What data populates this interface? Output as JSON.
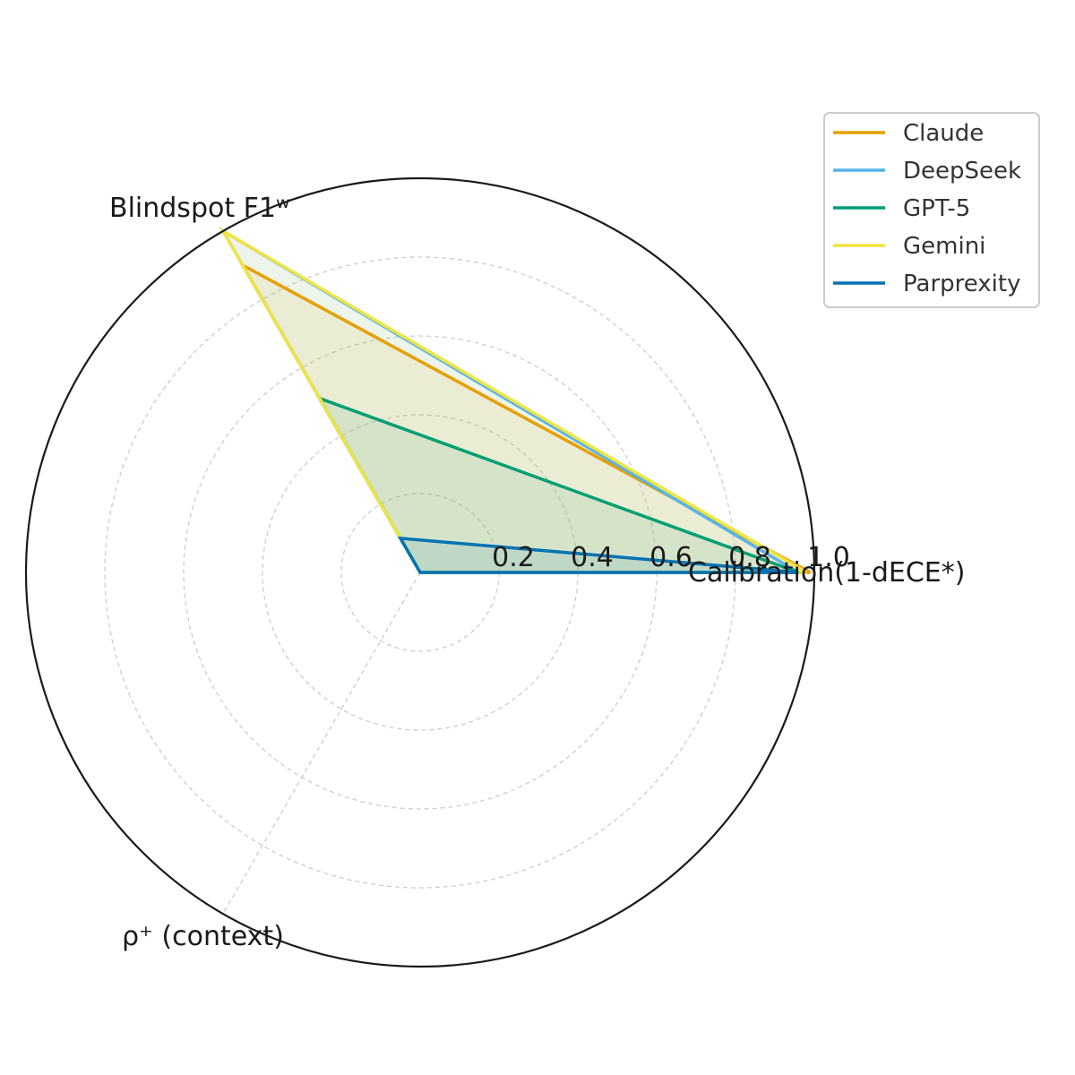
{
  "chart_data": {
    "type": "radar",
    "axes": [
      "Calibration(1-dECE*)",
      "Blindspot F1ʷ",
      "ρ⁺ (context)"
    ],
    "rlim": [
      0,
      1.0
    ],
    "r_ticks": [
      0.2,
      0.4,
      0.6,
      0.8,
      1.0
    ],
    "r_tick_labels": [
      "0.2",
      "0.4",
      "0.6",
      "0.8",
      "1.0"
    ],
    "grid": true,
    "legend_position": "top-right",
    "series": [
      {
        "name": "Claude",
        "color": "#E69F00",
        "values": [
          0.99,
          0.9,
          0.0
        ]
      },
      {
        "name": "DeepSeek",
        "color": "#56B4E9",
        "values": [
          0.96,
          1.0,
          0.0
        ]
      },
      {
        "name": "GPT-5",
        "color": "#009E73",
        "values": [
          0.96,
          0.51,
          0.0
        ]
      },
      {
        "name": "Gemini",
        "color": "#F0E442",
        "values": [
          0.98,
          1.0,
          0.0
        ]
      },
      {
        "name": "Parprexity",
        "color": "#0072B2",
        "values": [
          0.96,
          0.1,
          0.0
        ]
      }
    ]
  }
}
